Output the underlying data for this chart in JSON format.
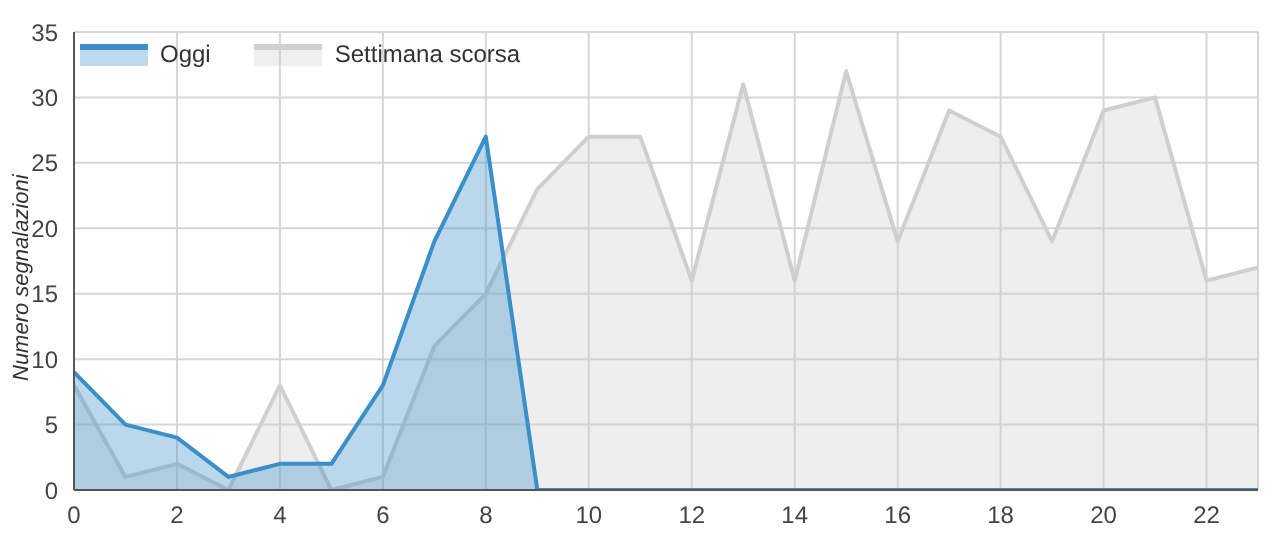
{
  "chart_data": {
    "type": "area",
    "ylabel": "Numero segnalazioni",
    "x": [
      0,
      1,
      2,
      3,
      4,
      5,
      6,
      7,
      8,
      9,
      10,
      11,
      12,
      13,
      14,
      15,
      16,
      17,
      18,
      19,
      20,
      21,
      22,
      23
    ],
    "series": [
      {
        "name": "Oggi",
        "color": "#3a8fc8",
        "values": [
          9,
          5,
          4,
          1,
          2,
          2,
          8,
          19,
          27,
          0,
          0,
          0,
          0,
          0,
          0,
          0,
          0,
          0,
          0,
          0,
          0,
          0,
          0,
          0
        ]
      },
      {
        "name": "Settimana scorsa",
        "color": "#cfcfcf",
        "values": [
          8,
          1,
          2,
          0,
          8,
          0,
          1,
          11,
          15,
          23,
          27,
          27,
          16,
          31,
          16,
          32,
          19,
          29,
          27,
          19,
          29,
          30,
          16,
          17
        ]
      }
    ],
    "xlim": [
      0,
      23
    ],
    "xticks": [
      0,
      2,
      4,
      6,
      8,
      10,
      12,
      14,
      16,
      18,
      20,
      22
    ],
    "ylim": [
      0,
      35
    ],
    "yticks": [
      0,
      5,
      10,
      15,
      20,
      25,
      30,
      35
    ],
    "grid": true,
    "legend": "top left",
    "marker": "none",
    "line_style": "solid"
  }
}
